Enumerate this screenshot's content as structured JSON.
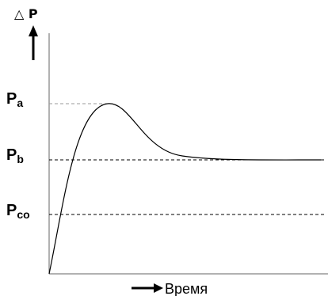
{
  "y_axis_label": "△ P",
  "x_axis_label": "Время",
  "levels": [
    {
      "main": "P",
      "sub": "a"
    },
    {
      "main": "P",
      "sub": "b"
    },
    {
      "main": "P",
      "sub": "co"
    }
  ],
  "colors": {
    "ink": "#000000",
    "peak_line": "#999999",
    "axes": "#666666"
  }
}
